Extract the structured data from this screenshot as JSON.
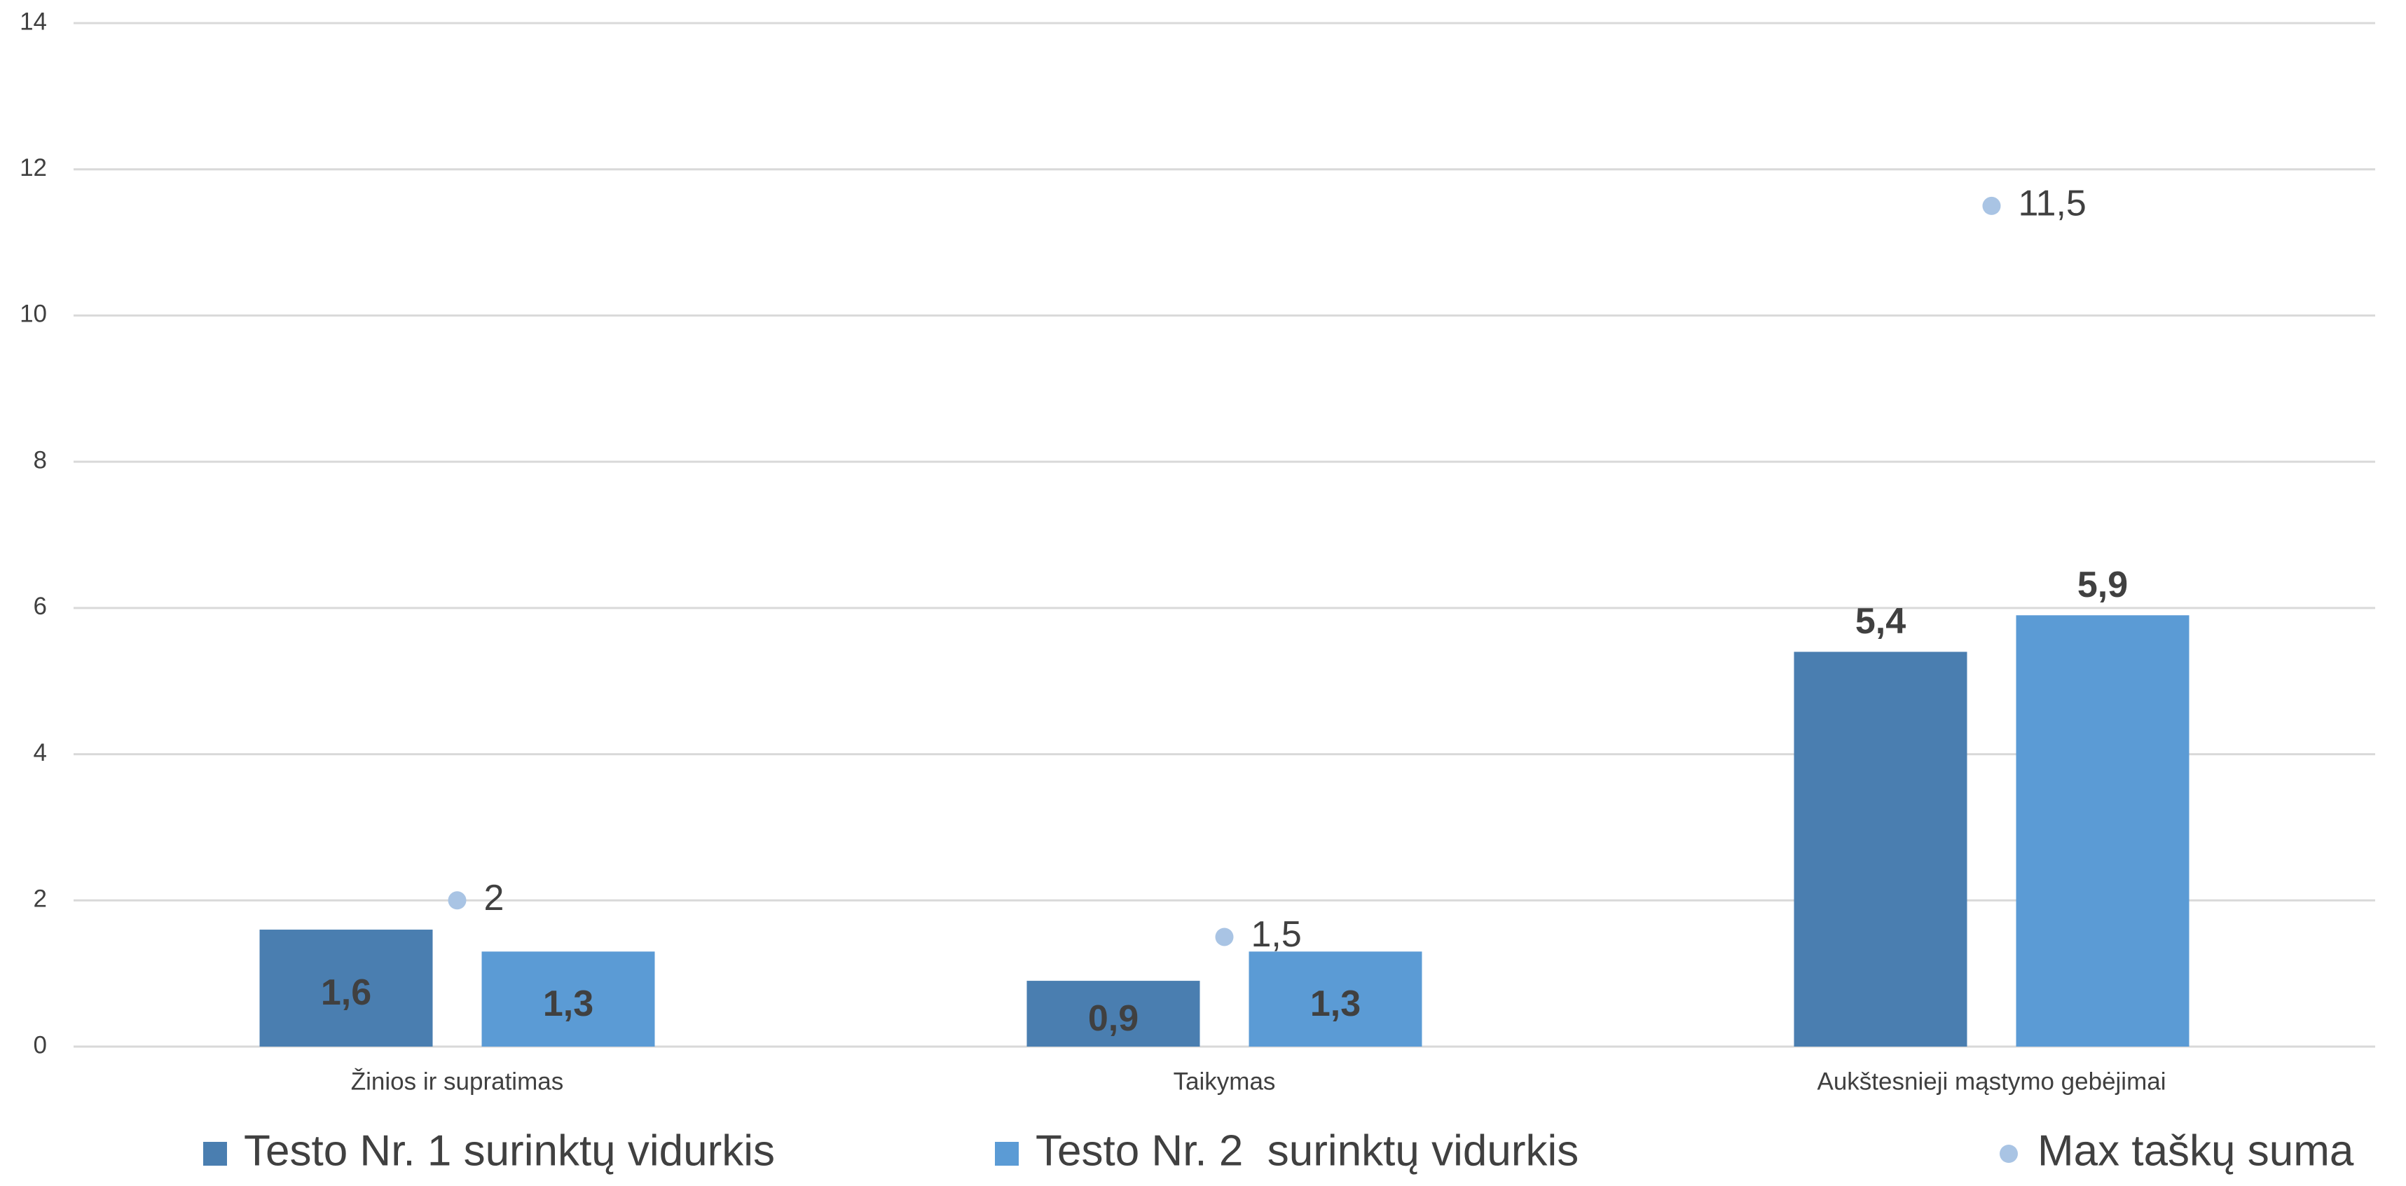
{
  "chart_data": {
    "type": "bar",
    "categories": [
      "Žinios ir supratimas",
      "Taikymas",
      "Aukštesnieji mąstymo gebėjimai"
    ],
    "series": [
      {
        "name": "Testo Nr. 1 surinktų vidurkis",
        "color": "#4a7eb0",
        "values": [
          1.6,
          0.9,
          5.4
        ],
        "value_labels": [
          "1,6",
          "0,9",
          "5,4"
        ]
      },
      {
        "name": "Testo Nr. 2  surinktų vidurkis",
        "color": "#5b9bd5",
        "values": [
          1.3,
          1.3,
          5.9
        ],
        "value_labels": [
          "1,3",
          "1,3",
          "5,9"
        ]
      },
      {
        "name": "Max taškų suma",
        "type": "scatter",
        "color": "#a9c4e4",
        "values": [
          2,
          1.5,
          11.5
        ],
        "value_labels": [
          "2",
          "1,5",
          "11,5"
        ]
      }
    ],
    "ylim": [
      0,
      14
    ],
    "yticks": [
      0,
      2,
      4,
      6,
      8,
      10,
      12,
      14
    ],
    "grid": true,
    "legend": "bottom"
  }
}
